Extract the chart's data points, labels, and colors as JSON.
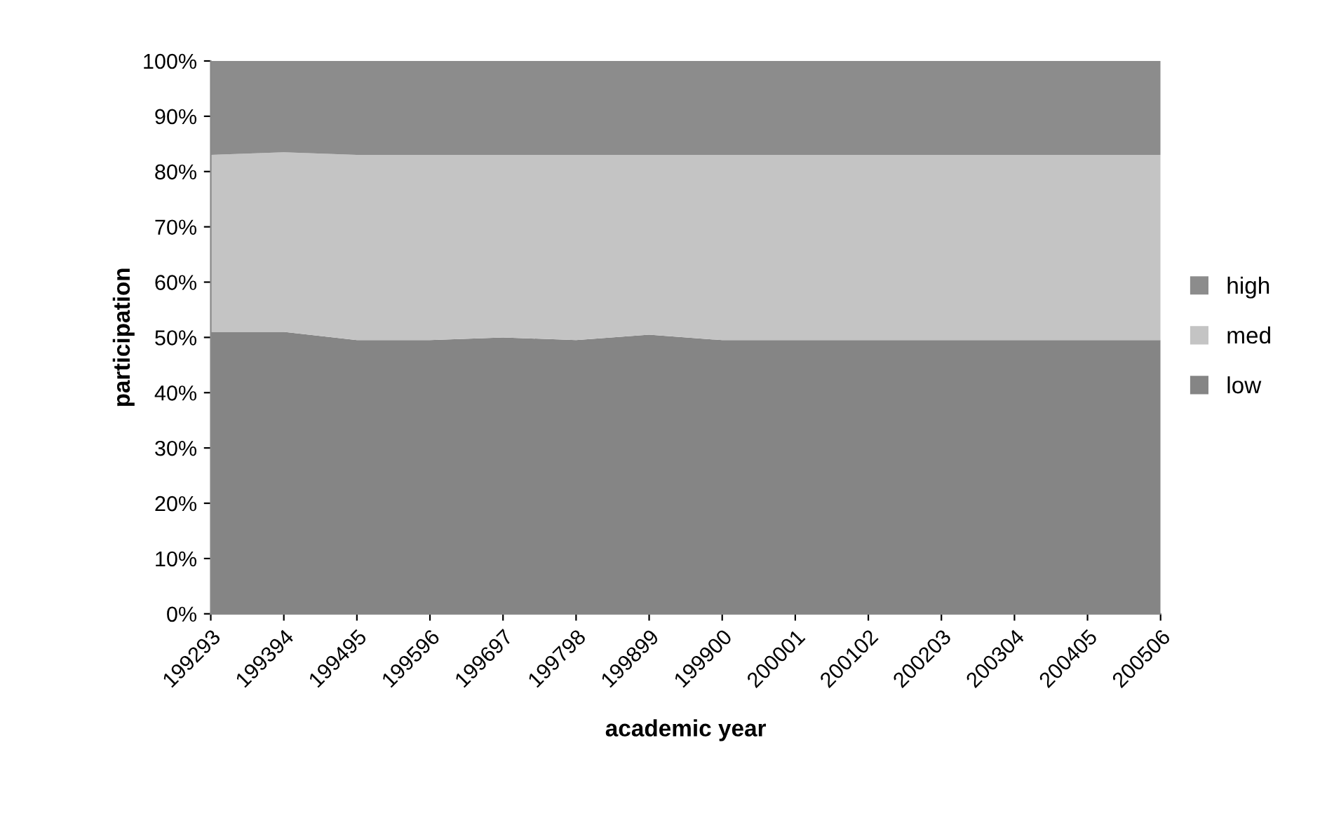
{
  "chart_data": {
    "type": "area",
    "stacked": true,
    "xlabel": "academic year",
    "ylabel": "participation",
    "categories": [
      "199293",
      "199394",
      "199495",
      "199596",
      "199697",
      "199798",
      "199899",
      "199900",
      "200001",
      "200102",
      "200203",
      "200304",
      "200405",
      "200506"
    ],
    "series": [
      {
        "name": "low",
        "color": "#858585",
        "values": [
          51,
          51,
          49.5,
          49.5,
          50,
          49.5,
          50.5,
          49.5,
          49.5,
          49.5,
          49.5,
          49.5,
          49.5,
          49.5
        ]
      },
      {
        "name": "med",
        "color": "#c4c4c4",
        "values": [
          32,
          32.5,
          33.5,
          33.5,
          33,
          33.5,
          32.5,
          33.5,
          33.5,
          33.5,
          33.5,
          33.5,
          33.5,
          33.5
        ]
      },
      {
        "name": "high",
        "color": "#8c8c8c",
        "values": [
          17,
          16.5,
          17,
          17,
          17,
          17,
          17,
          17,
          17,
          17,
          17,
          17,
          17,
          17
        ]
      }
    ],
    "ylim": [
      0,
      100
    ],
    "yticks": [
      {
        "value": 0,
        "label": "0%"
      },
      {
        "value": 10,
        "label": "10%"
      },
      {
        "value": 20,
        "label": "20%"
      },
      {
        "value": 30,
        "label": "30%"
      },
      {
        "value": 40,
        "label": "40%"
      },
      {
        "value": 50,
        "label": "50%"
      },
      {
        "value": 60,
        "label": "60%"
      },
      {
        "value": 70,
        "label": "70%"
      },
      {
        "value": 80,
        "label": "80%"
      },
      {
        "value": 90,
        "label": "90%"
      },
      {
        "value": 100,
        "label": "100%"
      }
    ],
    "legend": "right",
    "grid": false
  }
}
